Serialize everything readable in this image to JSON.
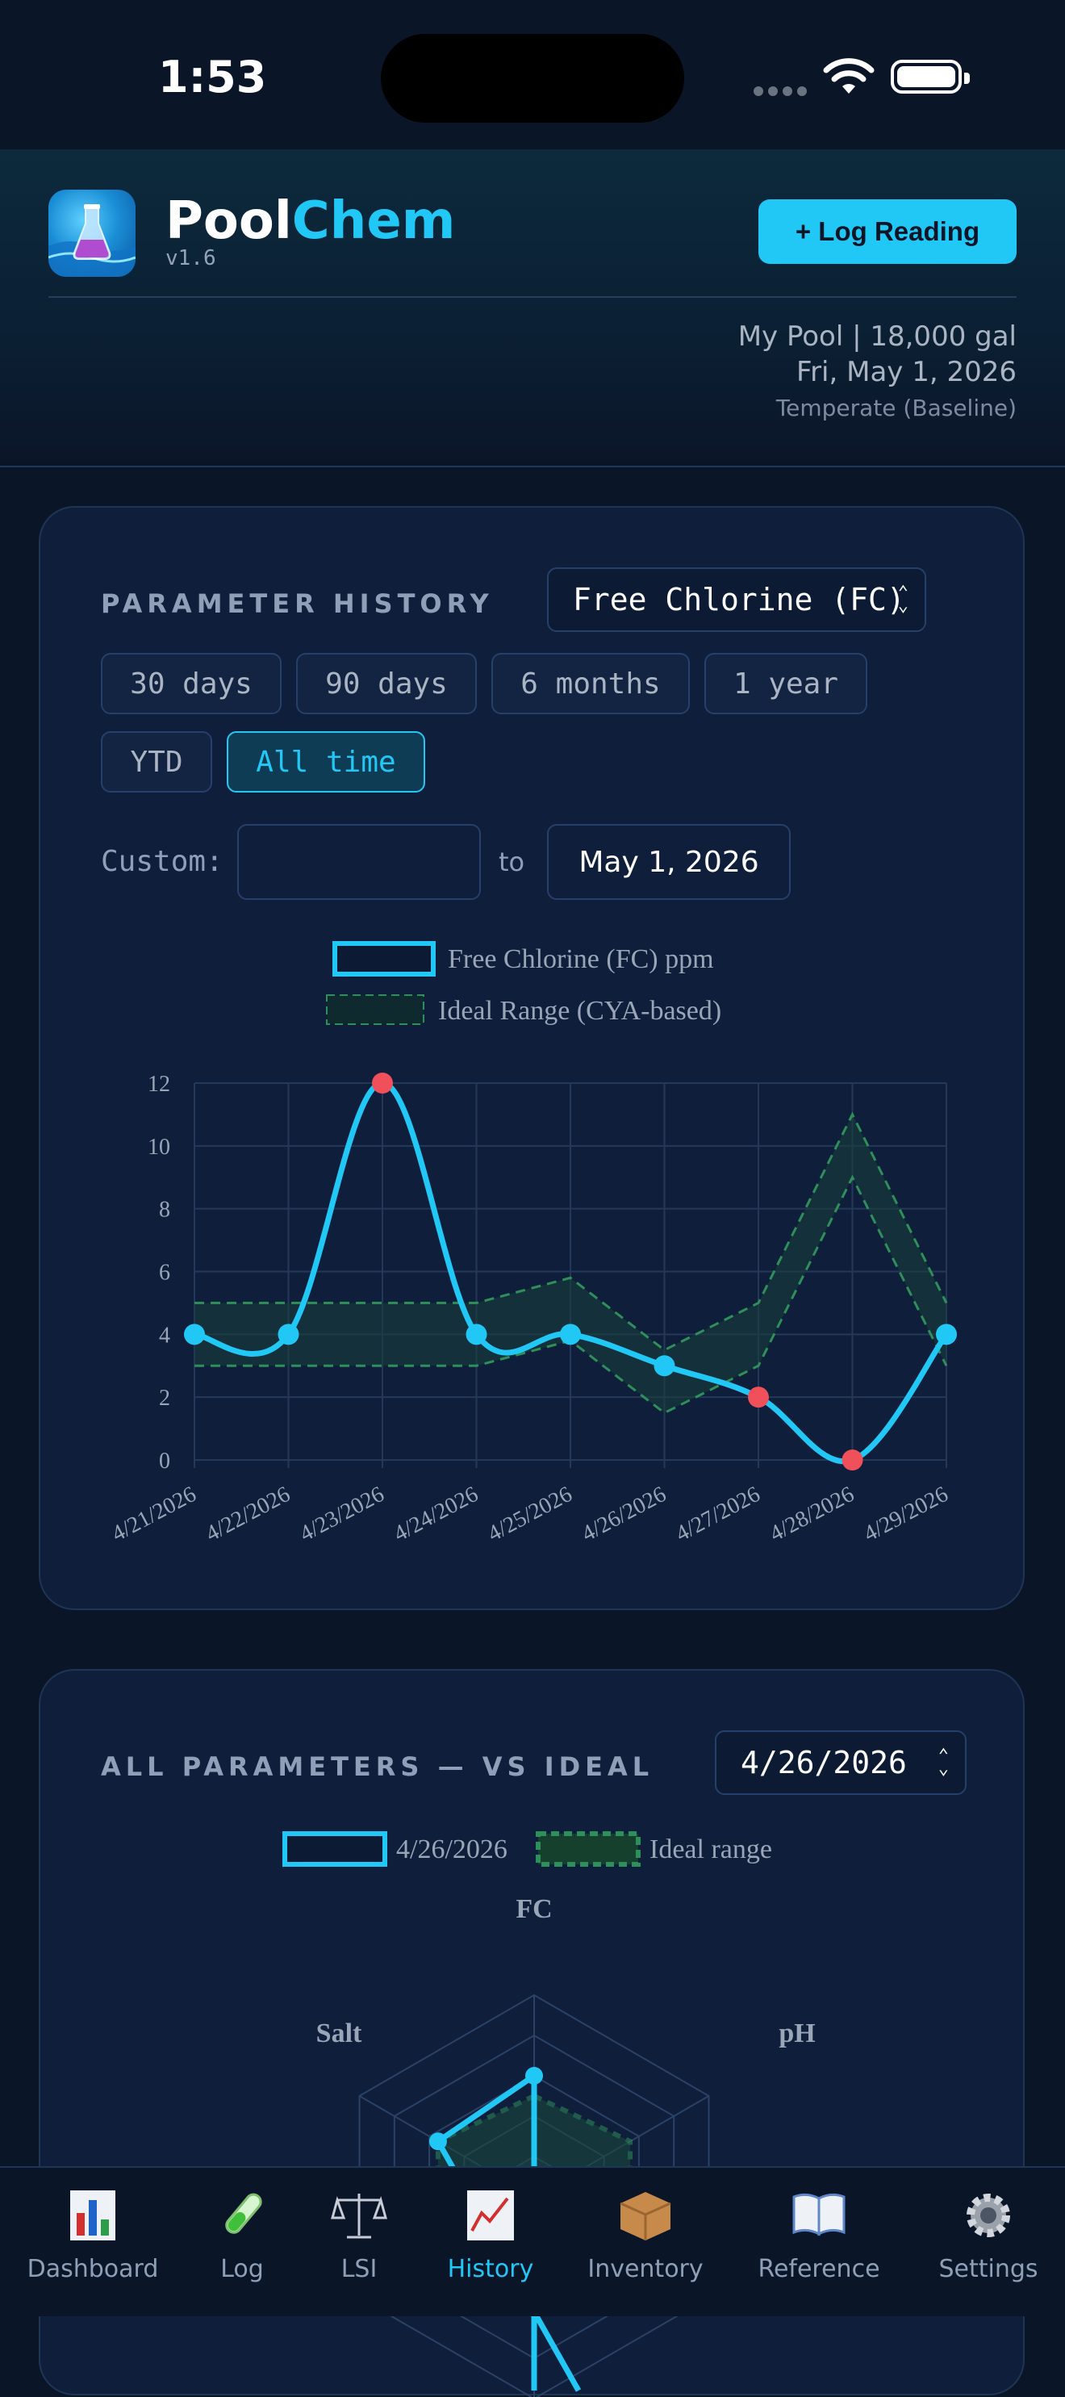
{
  "status_bar": {
    "time": "1:53"
  },
  "header": {
    "brand_part1": "Pool",
    "brand_part2": "Chem",
    "version": "v1.6",
    "log_button": "+ Log Reading",
    "pool_line": "My Pool  |  18,000 gal",
    "date_line": "Fri, May 1, 2026",
    "climate_line": "Temperate (Baseline)"
  },
  "history": {
    "title": "PARAMETER HISTORY",
    "parameter_select": "Free Chlorine (FC)",
    "ranges": [
      "30 days",
      "90 days",
      "6 months",
      "1 year",
      "YTD",
      "All time"
    ],
    "active_range": "All time",
    "custom_label": "Custom:",
    "custom_from": "",
    "to_label": "to",
    "custom_to": "May 1, 2026"
  },
  "all_params": {
    "title": "ALL PARAMETERS — VS IDEAL",
    "date_select": "4/26/2026"
  },
  "colors": {
    "accent": "#22c8f5",
    "ideal": "#2f8f5a",
    "alert": "#f0505a"
  },
  "chart_data": [
    {
      "type": "line",
      "legend": [
        "Free Chlorine (FC) ppm",
        "Ideal Range (CYA-based)"
      ],
      "x": [
        "4/21/2026",
        "4/22/2026",
        "4/23/2026",
        "4/24/2026",
        "4/25/2026",
        "4/26/2026",
        "4/27/2026",
        "4/28/2026",
        "4/29/2026"
      ],
      "series": [
        {
          "name": "Free Chlorine (FC) ppm",
          "values": [
            4,
            4,
            12,
            4,
            4,
            3,
            2,
            0,
            4
          ],
          "out_of_range": [
            false,
            false,
            true,
            false,
            false,
            false,
            true,
            true,
            false
          ]
        },
        {
          "name": "Ideal Range (CYA-based)",
          "low": [
            3,
            3,
            3,
            3,
            3.8,
            1.5,
            3,
            9,
            3
          ],
          "high": [
            5,
            5,
            5,
            5,
            5.8,
            3.5,
            5,
            11,
            5
          ]
        }
      ],
      "yticks": [
        0,
        2,
        4,
        6,
        8,
        10,
        12
      ],
      "ylim": [
        0,
        12
      ],
      "grid": true,
      "legend_position": "top"
    },
    {
      "type": "radar",
      "legend": [
        "4/26/2026",
        "Ideal range"
      ],
      "axes": [
        "FC",
        "pH",
        "",
        "",
        "",
        "Salt"
      ],
      "values": [
        0.6,
        null,
        null,
        null,
        null,
        0.55
      ],
      "ideal": [
        0.5,
        0.55,
        0.55,
        0.5,
        0.55,
        0.55
      ]
    }
  ],
  "nav": [
    {
      "label": "Dashboard",
      "icon": "bar-chart-icon"
    },
    {
      "label": "Log",
      "icon": "test-tube-icon"
    },
    {
      "label": "LSI",
      "icon": "balance-scale-icon"
    },
    {
      "label": "History",
      "icon": "line-chart-icon",
      "active": true
    },
    {
      "label": "Inventory",
      "icon": "box-icon"
    },
    {
      "label": "Reference",
      "icon": "book-icon"
    },
    {
      "label": "Settings",
      "icon": "gear-icon"
    }
  ]
}
